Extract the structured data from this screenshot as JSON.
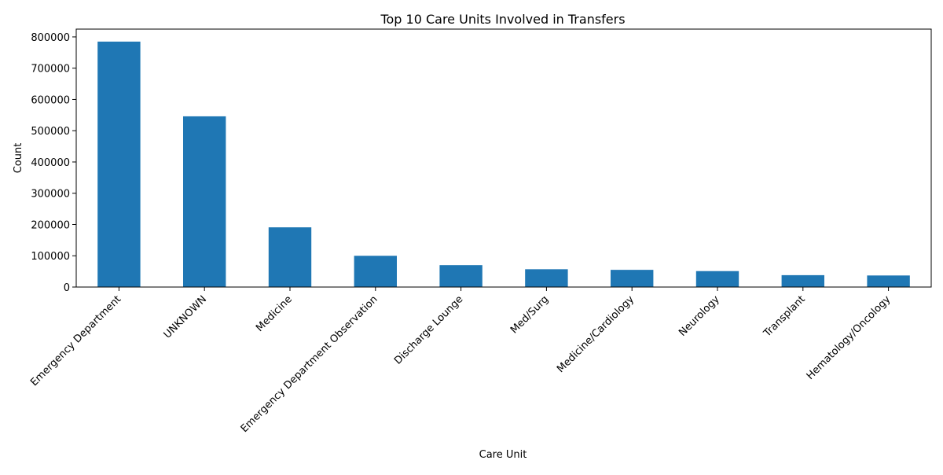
{
  "chart_data": {
    "type": "bar",
    "title": "Top 10 Care Units Involved in Transfers",
    "xlabel": "Care Unit",
    "ylabel": "Count",
    "categories": [
      "Emergency Department",
      "UNKNOWN",
      "Medicine",
      "Emergency Department Observation",
      "Discharge Lounge",
      "Med/Surg",
      "Medicine/Cardiology",
      "Neurology",
      "Transplant",
      "Hematology/Oncology"
    ],
    "values": [
      785000,
      546000,
      191000,
      100000,
      70000,
      57000,
      55000,
      51000,
      38000,
      37000
    ],
    "ylim": [
      0,
      825000
    ],
    "yticks": [
      0,
      100000,
      200000,
      300000,
      400000,
      500000,
      600000,
      700000,
      800000
    ],
    "bar_color": "#1f77b4",
    "grid": false,
    "legend": "none"
  }
}
